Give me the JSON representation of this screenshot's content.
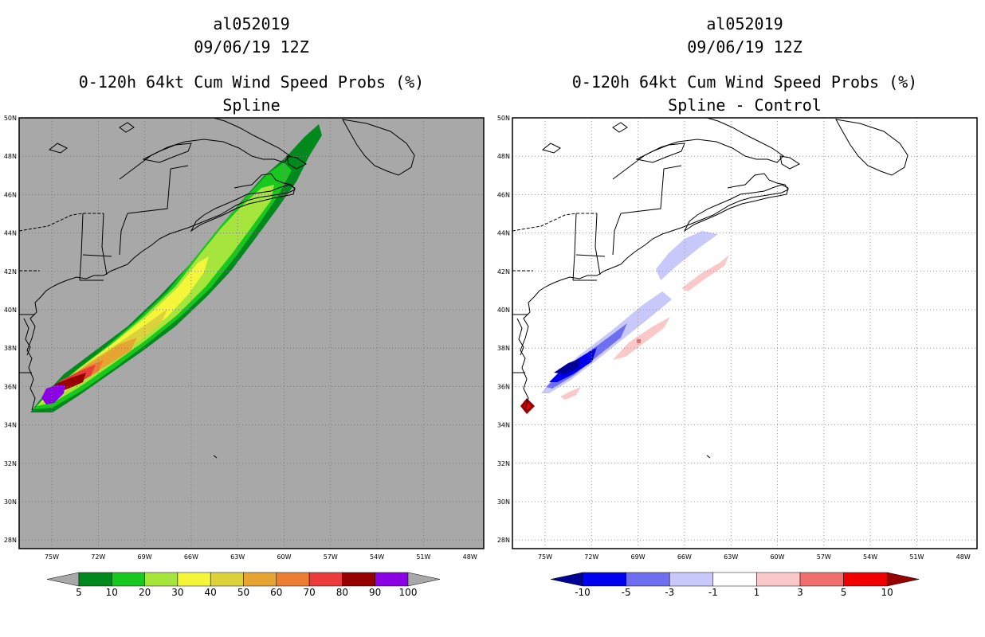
{
  "panels": [
    {
      "storm_id": "al052019",
      "datetime": "09/06/19 12Z",
      "product": "0-120h 64kt Cum Wind Speed Probs (%)",
      "subtitle": "Spline",
      "lat_labels": [
        "50N",
        "48N",
        "46N",
        "44N",
        "42N",
        "40N",
        "38N",
        "36N",
        "34N",
        "32N",
        "30N",
        "28N"
      ],
      "lon_labels": [
        "75W",
        "72W",
        "69W",
        "66W",
        "63W",
        "60W",
        "57W",
        "54W",
        "51W",
        "48W"
      ],
      "colorbar": {
        "labels": [
          "5",
          "10",
          "20",
          "30",
          "40",
          "50",
          "60",
          "70",
          "80",
          "90",
          "100"
        ],
        "colors": [
          "#a8a8a8",
          "#00891d",
          "#19c81e",
          "#a5e53c",
          "#f5f53a",
          "#dcd23c",
          "#e6a532",
          "#ec7d32",
          "#eb3c3c",
          "#960000",
          "#8c00e6",
          "#a8a8a8"
        ]
      }
    },
    {
      "storm_id": "al052019",
      "datetime": "09/06/19 12Z",
      "product": "0-120h 64kt Cum Wind Speed Probs (%)",
      "subtitle": "Spline - Control",
      "lat_labels": [
        "50N",
        "48N",
        "46N",
        "44N",
        "42N",
        "40N",
        "38N",
        "36N",
        "34N",
        "32N",
        "30N",
        "28N"
      ],
      "lon_labels": [
        "75W",
        "72W",
        "69W",
        "66W",
        "63W",
        "60W",
        "57W",
        "54W",
        "51W",
        "48W"
      ],
      "colorbar": {
        "labels": [
          "-10",
          "-5",
          "-3",
          "-1",
          "1",
          "3",
          "5",
          "10"
        ],
        "colors": [
          "#000096",
          "#0000f0",
          "#6e6ef0",
          "#c8c8fa",
          "#ffffff",
          "#fac8c8",
          "#f06e6e",
          "#f00000",
          "#960000"
        ]
      }
    }
  ]
}
